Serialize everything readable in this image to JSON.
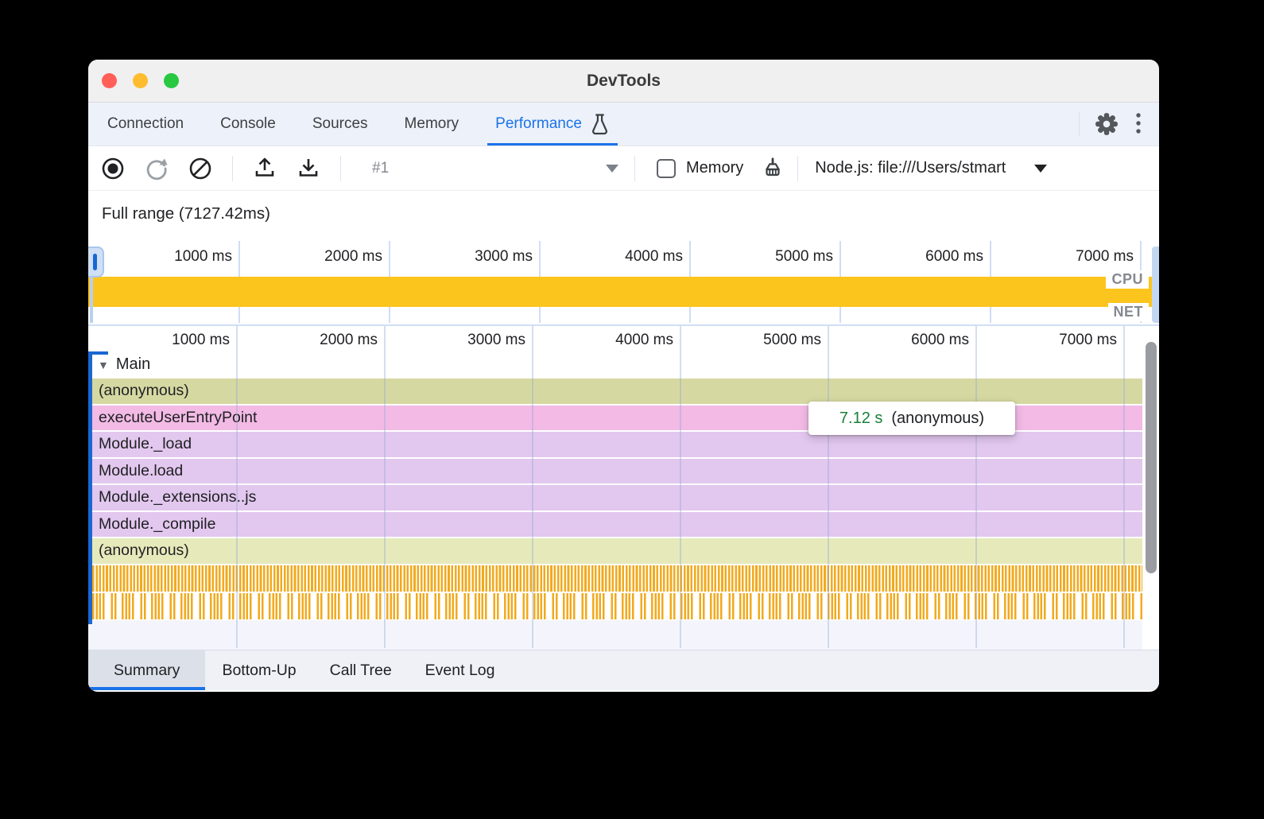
{
  "window": {
    "title": "DevTools"
  },
  "tabbar": {
    "tabs": [
      {
        "label": "Connection"
      },
      {
        "label": "Console"
      },
      {
        "label": "Sources"
      },
      {
        "label": "Memory"
      },
      {
        "label": "Performance"
      }
    ],
    "active_tab": "Performance"
  },
  "toolbar": {
    "trace_selector_value": "#1",
    "memory_checkbox_label": "Memory",
    "target_selector_value": "Node.js: file:///Users/stmart"
  },
  "overview": {
    "full_range_label": "Full range (7127.42ms)",
    "ticks": [
      "1000 ms",
      "2000 ms",
      "3000 ms",
      "4000 ms",
      "5000 ms",
      "6000 ms",
      "7000 ms"
    ],
    "cpu_label": "CPU",
    "net_label": "NET"
  },
  "flame": {
    "ticks": [
      "1000 ms",
      "2000 ms",
      "3000 ms",
      "4000 ms",
      "5000 ms",
      "6000 ms",
      "7000 ms"
    ],
    "track_label": "Main",
    "rows": [
      {
        "label": "(anonymous)",
        "color": "#d6d8a2"
      },
      {
        "label": "executeUserEntryPoint",
        "color": "#f2bae5"
      },
      {
        "label": "Module._load",
        "color": "#e2c7ee"
      },
      {
        "label": "Module.load",
        "color": "#e2c7ee"
      },
      {
        "label": "Module._extensions..js",
        "color": "#e2c7ee"
      },
      {
        "label": "Module._compile",
        "color": "#e2c7ee"
      },
      {
        "label": "(anonymous)",
        "color": "#e6e9ba"
      }
    ],
    "tooltip": {
      "duration": "7.12 s",
      "name": "(anonymous)"
    }
  },
  "bottom_tabs": [
    {
      "label": "Summary"
    },
    {
      "label": "Bottom-Up"
    },
    {
      "label": "Call Tree"
    },
    {
      "label": "Event Log"
    }
  ],
  "colors": {
    "accent": "#1a73e8",
    "cpu_band": "#fcc51d",
    "tooltip_duration_text": "#188038"
  }
}
